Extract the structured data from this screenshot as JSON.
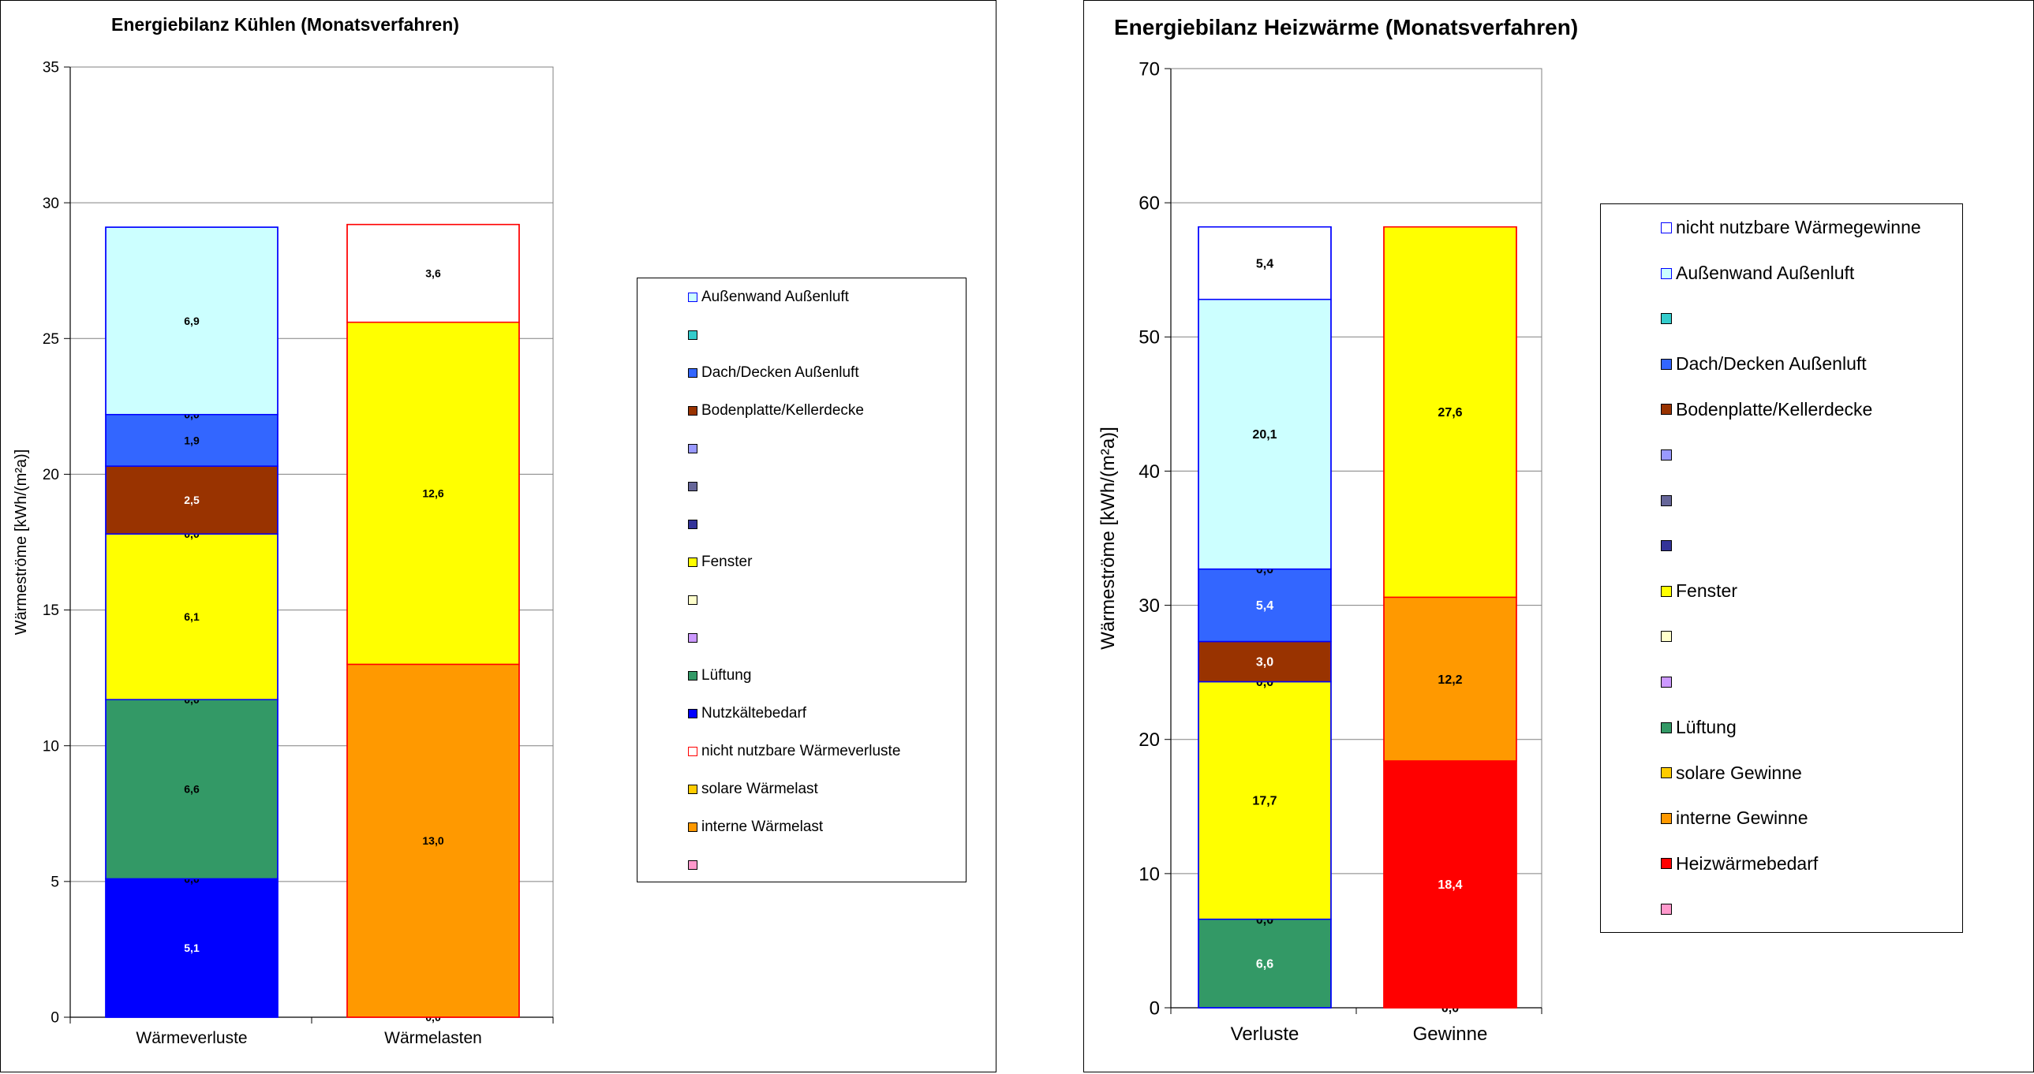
{
  "chart_data": [
    {
      "type": "bar",
      "stacked": true,
      "title": "Energiebilanz Kühlen (Monatsverfahren)",
      "xlabel": "",
      "ylabel": "Wärmeströme [kWh/(m²a)]",
      "ylim": [
        0,
        35
      ],
      "yticks": [
        0,
        5,
        10,
        15,
        20,
        25,
        30,
        35
      ],
      "grid": true,
      "legend_position": "right",
      "categories": [
        "Wärmeverluste",
        "Wärmelasten"
      ],
      "stacks": [
        {
          "category": "Wärmeverluste",
          "border": "#0000ff",
          "segments": [
            {
              "series": "Nutzkältebedarf",
              "value": 5.1,
              "label": "5,1",
              "color": "#0000ff",
              "label_color": "#ffffff"
            },
            {
              "series": "",
              "value": 0,
              "label": "0,0",
              "color": "#ff99cc",
              "label_color": "#000000"
            },
            {
              "series": "Lüftung",
              "value": 6.6,
              "label": "6,6",
              "color": "#339966",
              "label_color": "#000000"
            },
            {
              "series": "",
              "value": 0,
              "label": "0,0",
              "color": "#cc99ff",
              "label_color": "#000000"
            },
            {
              "series": "Fenster",
              "value": 6.1,
              "label": "6,1",
              "color": "#ffff00",
              "label_color": "#000000"
            },
            {
              "series": "",
              "value": 0,
              "label": "0,0",
              "color": "#ffffcc",
              "label_color": "#000000"
            },
            {
              "series": "Bodenplatte/Kellerdecke",
              "value": 2.5,
              "label": "2,5",
              "color": "#993300",
              "label_color": "#ffffff"
            },
            {
              "series": "Dach/Decken Außenluft",
              "value": 1.9,
              "label": "1,9",
              "color": "#3366ff",
              "label_color": "#000000"
            },
            {
              "series": "",
              "value": 0,
              "label": "0,0",
              "color": "#33cccc",
              "label_color": "#000000"
            },
            {
              "series": "Außenwand Außenluft",
              "value": 6.9,
              "label": "6,9",
              "color": "#ccffff",
              "label_color": "#000000"
            }
          ]
        },
        {
          "category": "Wärmelasten",
          "border": "#ff0000",
          "segments": [
            {
              "series": "",
              "value": 0,
              "label": "0,0",
              "color": "#ff99cc",
              "label_color": "#000000"
            },
            {
              "series": "interne Wärmelast",
              "value": 13.0,
              "label": "13,0",
              "color": "#ff9900",
              "label_color": "#000000"
            },
            {
              "series": "solare Wärmelast",
              "value": 12.6,
              "label": "12,6",
              "color": "#ffff00",
              "label_color": "#000000"
            },
            {
              "series": "nicht nutzbare Wärmeverluste",
              "value": 3.6,
              "label": "3,6",
              "color": "#ffffff",
              "label_color": "#000000"
            }
          ]
        }
      ],
      "legend": [
        {
          "label": "Außenwand Außenluft",
          "color": "#ccffff",
          "border": "#0000ff"
        },
        {
          "label": "",
          "color": "#33cccc",
          "border": "#000000"
        },
        {
          "label": "Dach/Decken Außenluft",
          "color": "#3366ff",
          "border": "#000000"
        },
        {
          "label": "Bodenplatte/Kellerdecke",
          "color": "#993300",
          "border": "#000000"
        },
        {
          "label": "",
          "color": "#9999ff",
          "border": "#000000"
        },
        {
          "label": "",
          "color": "#666699",
          "border": "#000000"
        },
        {
          "label": "",
          "color": "#333399",
          "border": "#000000"
        },
        {
          "label": "Fenster",
          "color": "#ffff00",
          "border": "#000000"
        },
        {
          "label": "",
          "color": "#ffffcc",
          "border": "#000000"
        },
        {
          "label": "",
          "color": "#cc99ff",
          "border": "#000000"
        },
        {
          "label": "Lüftung",
          "color": "#339966",
          "border": "#000000"
        },
        {
          "label": "Nutzkältebedarf",
          "color": "#0000ff",
          "border": "#000000"
        },
        {
          "label": "nicht nutzbare Wärmeverluste",
          "color": "#ffffff",
          "border": "#ff0000"
        },
        {
          "label": "solare Wärmelast",
          "color": "#ffcc00",
          "border": "#000000"
        },
        {
          "label": "interne Wärmelast",
          "color": "#ff9900",
          "border": "#000000"
        },
        {
          "label": "",
          "color": "#ff99cc",
          "border": "#000000"
        }
      ]
    },
    {
      "type": "bar",
      "stacked": true,
      "title": "Energiebilanz Heizwärme (Monatsverfahren)",
      "xlabel": "",
      "ylabel": "Wärmeströme [kWh/(m²a)]",
      "ylim": [
        0,
        70
      ],
      "yticks": [
        0,
        10,
        20,
        30,
        40,
        50,
        60,
        70
      ],
      "grid": true,
      "legend_position": "right",
      "categories": [
        "Verluste",
        "Gewinne"
      ],
      "stacks": [
        {
          "category": "Verluste",
          "border": "#0000ff",
          "segments": [
            {
              "series": "Lüftung",
              "value": 6.6,
              "label": "6,6",
              "color": "#339966",
              "label_color": "#ffffff"
            },
            {
              "series": "",
              "value": 0,
              "label": "0,0",
              "color": "#cc99ff",
              "label_color": "#000000"
            },
            {
              "series": "Fenster",
              "value": 17.7,
              "label": "17,7",
              "color": "#ffff00",
              "label_color": "#000000"
            },
            {
              "series": "",
              "value": 0,
              "label": "0,0",
              "color": "#ffffcc",
              "label_color": "#000000"
            },
            {
              "series": "Bodenplatte/Kellerdecke",
              "value": 3.0,
              "label": "3,0",
              "color": "#993300",
              "label_color": "#ffffff"
            },
            {
              "series": "Dach/Decken Außenluft",
              "value": 5.4,
              "label": "5,4",
              "color": "#3366ff",
              "label_color": "#ffffff"
            },
            {
              "series": "",
              "value": 0,
              "label": "0,0",
              "color": "#33cccc",
              "label_color": "#000000"
            },
            {
              "series": "Außenwand Außenluft",
              "value": 20.1,
              "label": "20,1",
              "color": "#ccffff",
              "label_color": "#000000"
            },
            {
              "series": "nicht nutzbare Wärmegewinne",
              "value": 5.4,
              "label": "5,4",
              "color": "#ffffff",
              "label_color": "#000000"
            }
          ]
        },
        {
          "category": "Gewinne",
          "border": "#ff0000",
          "segments": [
            {
              "series": "",
              "value": 0,
              "label": "0,0",
              "color": "#ff99cc",
              "label_color": "#000000"
            },
            {
              "series": "Heizwärmebedarf",
              "value": 18.4,
              "label": "18,4",
              "color": "#ff0000",
              "label_color": "#ffffff"
            },
            {
              "series": "interne Gewinne",
              "value": 12.2,
              "label": "12,2",
              "color": "#ff9900",
              "label_color": "#000000"
            },
            {
              "series": "solare Gewinne",
              "value": 27.6,
              "label": "27,6",
              "color": "#ffff00",
              "label_color": "#000000"
            }
          ]
        }
      ],
      "legend": [
        {
          "label": "nicht nutzbare Wärmegewinne",
          "color": "#ffffff",
          "border": "#0000ff"
        },
        {
          "label": "Außenwand Außenluft",
          "color": "#ccffff",
          "border": "#0000ff"
        },
        {
          "label": "",
          "color": "#33cccc",
          "border": "#000000"
        },
        {
          "label": "Dach/Decken Außenluft",
          "color": "#3366ff",
          "border": "#000000"
        },
        {
          "label": "Bodenplatte/Kellerdecke",
          "color": "#993300",
          "border": "#000000"
        },
        {
          "label": "",
          "color": "#9999ff",
          "border": "#000000"
        },
        {
          "label": "",
          "color": "#666699",
          "border": "#000000"
        },
        {
          "label": "",
          "color": "#333399",
          "border": "#000000"
        },
        {
          "label": "Fenster",
          "color": "#ffff00",
          "border": "#000000"
        },
        {
          "label": "",
          "color": "#ffffcc",
          "border": "#000000"
        },
        {
          "label": "",
          "color": "#cc99ff",
          "border": "#000000"
        },
        {
          "label": "Lüftung",
          "color": "#339966",
          "border": "#000000"
        },
        {
          "label": "solare Gewinne",
          "color": "#ffcc00",
          "border": "#000000"
        },
        {
          "label": "interne Gewinne",
          "color": "#ff9900",
          "border": "#000000"
        },
        {
          "label": "Heizwärmebedarf",
          "color": "#ff0000",
          "border": "#000000"
        },
        {
          "label": "",
          "color": "#ff99cc",
          "border": "#000000"
        }
      ]
    }
  ]
}
